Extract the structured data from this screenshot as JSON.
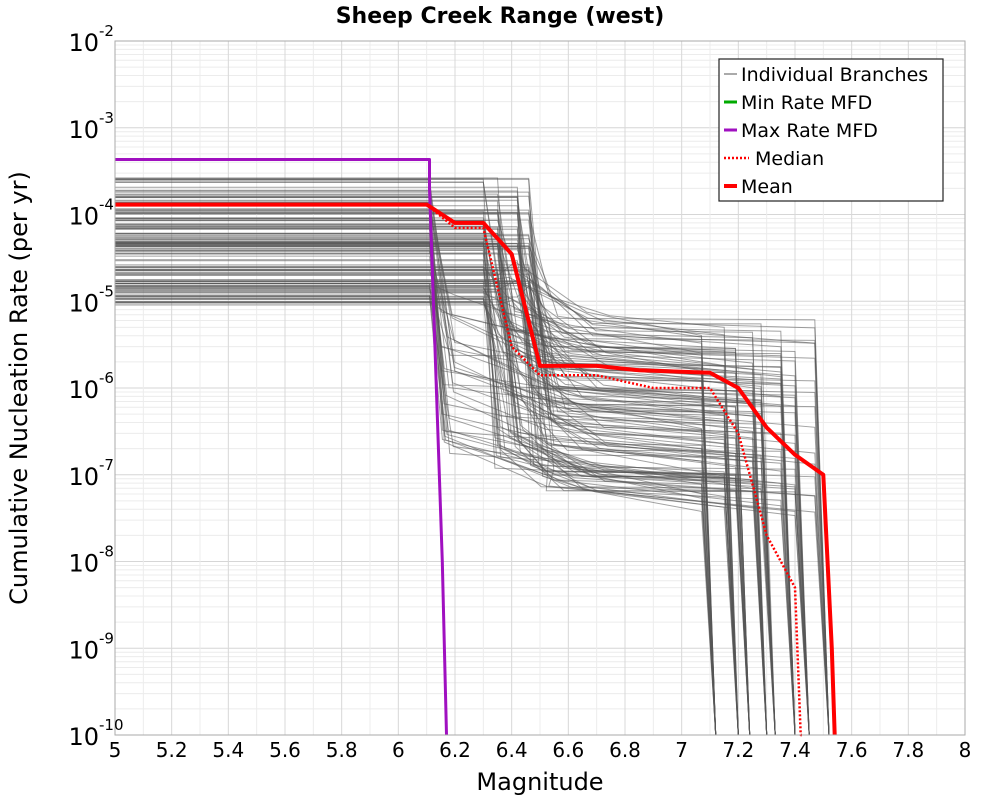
{
  "chart_data": {
    "type": "line",
    "title": "Sheep Creek Range (west)",
    "xlabel": "Magnitude",
    "ylabel": "Cumulative Nucleation Rate (per yr)",
    "xlim": [
      5,
      8
    ],
    "ylim": [
      1e-10,
      0.01
    ],
    "y_scale": "log",
    "grid": true,
    "legend_position": "top-right",
    "x_ticks": [
      "5",
      "5.2",
      "5.4",
      "5.6",
      "5.8",
      "6",
      "6.2",
      "6.4",
      "6.6",
      "6.8",
      "7",
      "7.2",
      "7.4",
      "7.6",
      "7.8",
      "8"
    ],
    "y_ticks": [
      {
        "base": "10",
        "exp": "-10"
      },
      {
        "base": "10",
        "exp": "-9"
      },
      {
        "base": "10",
        "exp": "-8"
      },
      {
        "base": "10",
        "exp": "-7"
      },
      {
        "base": "10",
        "exp": "-6"
      },
      {
        "base": "10",
        "exp": "-5"
      },
      {
        "base": "10",
        "exp": "-4"
      },
      {
        "base": "10",
        "exp": "-3"
      },
      {
        "base": "10",
        "exp": "-2"
      }
    ],
    "series": [
      {
        "name": "Individual Branches",
        "color": "#555555",
        "style": "thin",
        "x": [
          5.0,
          6.1,
          6.15,
          6.4,
          6.5,
          7.1,
          7.2,
          7.4,
          7.5
        ],
        "y": [
          0.00013,
          0.00013,
          8e-05,
          4e-05,
          5e-06,
          4e-06,
          1e-06,
          3e-07,
          1e-10
        ]
      },
      {
        "name": "Min Rate MFD",
        "color": "#00aa00",
        "style": "solid",
        "x": [
          6.17,
          6.17
        ],
        "y": [
          1e-10,
          1e-10
        ]
      },
      {
        "name": "Max Rate MFD",
        "color": "#a010c0",
        "style": "solid",
        "x": [
          5.0,
          6.11,
          6.11,
          6.155,
          6.17
        ],
        "y": [
          0.00043,
          0.00043,
          0.0002,
          1e-08,
          1e-10
        ]
      },
      {
        "name": "Median",
        "color": "#ff0000",
        "style": "dotted",
        "x": [
          5.0,
          6.1,
          6.2,
          6.3,
          6.4,
          6.5,
          6.7,
          6.9,
          7.1,
          7.2,
          7.3,
          7.4,
          7.42,
          7.43
        ],
        "y": [
          0.00013,
          0.00013,
          7e-05,
          7e-05,
          3e-06,
          1.4e-06,
          1.4e-06,
          1e-06,
          1e-06,
          3e-07,
          2e-08,
          5e-09,
          1e-10,
          1e-10
        ]
      },
      {
        "name": "Mean",
        "color": "#ff0000",
        "style": "thick",
        "x": [
          5.0,
          6.1,
          6.2,
          6.3,
          6.4,
          6.5,
          6.7,
          6.85,
          7.1,
          7.2,
          7.3,
          7.4,
          7.5,
          7.53,
          7.54
        ],
        "y": [
          0.00013,
          0.00013,
          8e-05,
          8e-05,
          3.5e-05,
          1.8e-06,
          1.8e-06,
          1.6e-06,
          1.5e-06,
          1e-06,
          3.5e-07,
          1.7e-07,
          1e-07,
          1e-09,
          1e-10
        ]
      }
    ]
  }
}
